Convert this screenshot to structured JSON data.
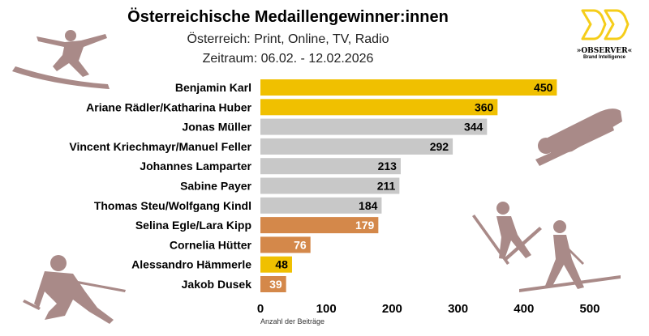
{
  "logo": {
    "brand": "»OBSERVER«",
    "tagline": "Brand Intelligence"
  },
  "chart_data": {
    "type": "bar",
    "orientation": "horizontal",
    "title": "Österreichische Medaillengewinner:innen",
    "subtitle": "Österreich: Print, Online, TV, Radio",
    "subtitle2": "Zeitraum: 06.02. - 12.02.2026",
    "xlabel": "Anzahl der Beiträge",
    "xlim": [
      0,
      500
    ],
    "xticks": [
      0,
      100,
      200,
      300,
      400,
      500
    ],
    "grid": false,
    "categories": [
      "Benjamin Karl",
      "Ariane Rädler/Katharina Huber",
      "Jonas Müller",
      "Vincent Kriechmayr/Manuel Feller",
      "Johannes Lamparter",
      "Sabine Payer",
      "Thomas Steu/Wolfgang Kindl",
      "Selina Egle/Lara Kipp",
      "Cornelia Hütter",
      "Alessandro Hämmerle",
      "Jakob Dusek"
    ],
    "values": [
      450,
      360,
      344,
      292,
      213,
      211,
      184,
      179,
      76,
      48,
      39
    ],
    "medal": [
      "gold",
      "gold",
      "silver",
      "silver",
      "silver",
      "silver",
      "silver",
      "bronze",
      "bronze",
      "gold",
      "bronze"
    ],
    "colors": {
      "gold": "#f0c000",
      "silver": "#c8c8c8",
      "bronze": "#d4884a"
    }
  }
}
